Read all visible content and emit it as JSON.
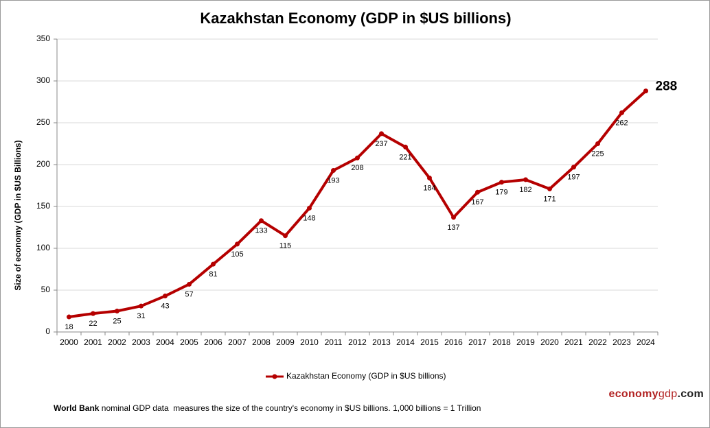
{
  "chart_data": {
    "type": "line",
    "title": "Kazakhstan Economy (GDP in $US billions)",
    "y_label": "Size of economy (GDP in $US Billions)",
    "categories": [
      "2000",
      "2001",
      "2002",
      "2003",
      "2004",
      "2005",
      "2006",
      "2007",
      "2008",
      "2009",
      "2010",
      "2011",
      "2012",
      "2013",
      "2014",
      "2015",
      "2016",
      "2017",
      "2018",
      "2019",
      "2020",
      "2021",
      "2022",
      "2023",
      "2024"
    ],
    "series": [
      {
        "name": "Kazakhstan Economy (GDP in $US billions)",
        "color": "#b50000",
        "values": [
          18,
          22,
          25,
          31,
          43,
          57,
          81,
          105,
          133,
          115,
          148,
          193,
          208,
          237,
          221,
          184,
          137,
          167,
          179,
          182,
          171,
          197,
          225,
          262,
          288
        ]
      }
    ],
    "ylim": [
      0,
      350
    ],
    "yticks": [
      0,
      50,
      100,
      150,
      200,
      250,
      300,
      350
    ],
    "grid": true,
    "legend": "bottom"
  },
  "footer": {
    "bold": "World Bank",
    "text": " nominal GDP data  measures the size of the country's economy in $US billions. 1,000 billions = 1 Trillion",
    "brand": [
      "economy",
      "gdp",
      ".com"
    ]
  }
}
